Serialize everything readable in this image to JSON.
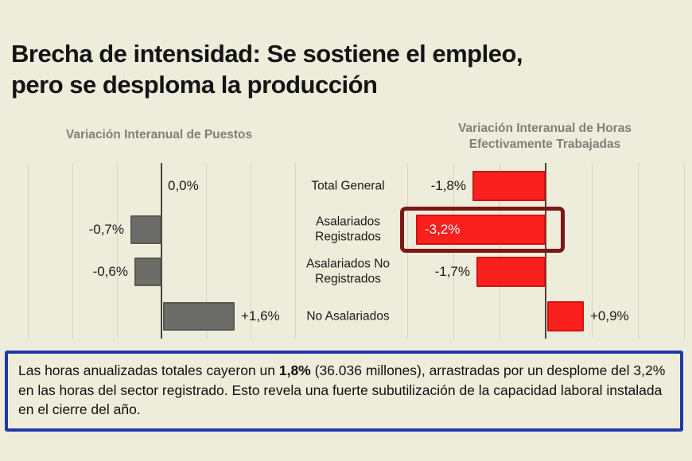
{
  "header": {
    "title_line1": "Brecha de intensidad: Se sostiene el empleo,",
    "title_line2": "pero se desploma la producción"
  },
  "chart_data": [
    {
      "type": "bar",
      "orientation": "horizontal",
      "title": "Variación Interanual de Puestos",
      "categories": [
        "Total General",
        "Asalariados Registrados",
        "Asalariados No Registrados",
        "No Asalariados"
      ],
      "values": [
        0.0,
        -0.7,
        -0.6,
        1.6
      ],
      "value_labels": [
        "0,0%",
        "-0,7%",
        "-0,6%",
        "+1,6%"
      ],
      "bar_color": "#6c6c68",
      "bar_border_color": "#5a5a55",
      "xlim": [
        -3,
        3
      ],
      "grid": true,
      "legend": "none"
    },
    {
      "type": "bar",
      "orientation": "horizontal",
      "title": "Variación Interanual de Horas Efectivamente Trabajadas",
      "categories": [
        "Total General",
        "Asalariados Registrados",
        "Asalariados No Registrados",
        "No Asalariados"
      ],
      "values": [
        -1.8,
        -3.2,
        -1.7,
        0.9
      ],
      "value_labels": [
        "-1,8%",
        "-3,2%",
        "-1,7%",
        "+0,9%"
      ],
      "bar_color": "#fa201d",
      "bar_border_color": "#d01310",
      "highlight_index": 1,
      "highlight_border_color": "#7b1715",
      "highlight_label_color": "#ffffff",
      "xlim": [
        -3,
        3
      ],
      "grid": true,
      "legend": "none"
    }
  ],
  "categories_column": [
    "Total General",
    "Asalariados Registrados",
    "Asalariados No Registrados",
    "No Asalariados"
  ],
  "note": {
    "pre": "Las horas anualizadas totales cayeron un ",
    "bold": "1,8%",
    "post": " (36.036 millones), arrastradas por un desplome del 3,2% en las horas del sector registrado. Esto revela una fuerte subutilización de la capacidad laboral instalada en el cierre del año.",
    "border_color": "#2139a6"
  },
  "colors": {
    "background": "#eeecdb",
    "grid": "#d8d5c2",
    "axis": "#44443e",
    "text": "#1a1a1a",
    "subtitle": "#80807a"
  }
}
